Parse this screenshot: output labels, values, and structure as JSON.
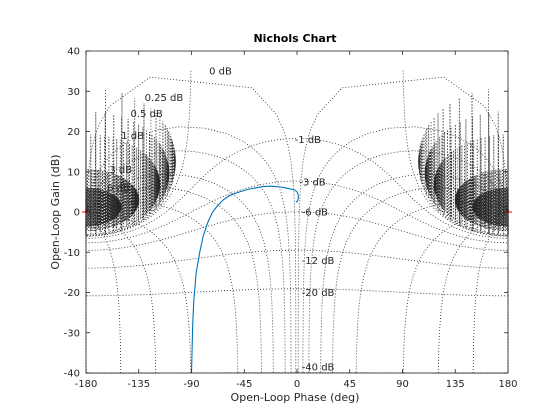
{
  "chart_data": {
    "type": "line",
    "title": "Nichols Chart",
    "xlabel": "Open-Loop Phase (deg)",
    "ylabel": "Open-Loop Gain (dB)",
    "xlim": [
      -180,
      180
    ],
    "ylim": [
      -40,
      40
    ],
    "xticks": [
      -180,
      -135,
      -90,
      -45,
      0,
      45,
      90,
      135,
      180
    ],
    "yticks": [
      -40,
      -30,
      -20,
      -10,
      0,
      10,
      20,
      30,
      40
    ],
    "xtick_labels": [
      "-180",
      "-135",
      "-90",
      "-45",
      "0",
      "45",
      "90",
      "135",
      "180"
    ],
    "ytick_labels": [
      "-40",
      "-30",
      "-20",
      "-10",
      "0",
      "10",
      "20",
      "30",
      "40"
    ],
    "grid": true,
    "grid_style": "dotted",
    "grid_color": "#262626",
    "line_color": "#0072bd",
    "critical_marker_color": "#ff0000",
    "critical_points": [
      [
        -180,
        0
      ],
      [
        180,
        0
      ]
    ],
    "closed_loop_gain_contours_db": [
      0,
      0.25,
      0.5,
      1,
      3,
      6,
      -1,
      -3,
      -6,
      -12,
      -20,
      -40
    ],
    "grid_labels": [
      {
        "text": "0 dB",
        "phase": -75,
        "gain": 35
      },
      {
        "text": "0.25 dB",
        "phase": -130,
        "gain": 28.5
      },
      {
        "text": "0.5 dB",
        "phase": -142,
        "gain": 24.5
      },
      {
        "text": "1 dB",
        "phase": -150,
        "gain": 19
      },
      {
        "text": "3 dB",
        "phase": -160,
        "gain": 10.5
      },
      {
        "text": "6 dB",
        "phase": -162,
        "gain": 6
      },
      {
        "text": "-1 dB",
        "phase": -2,
        "gain": 18
      },
      {
        "text": "-3 dB",
        "phase": 2,
        "gain": 7.5
      },
      {
        "text": "-6 dB",
        "phase": 4,
        "gain": 0
      },
      {
        "text": "-12 dB",
        "phase": 4,
        "gain": -12
      },
      {
        "text": "-20 dB",
        "phase": 4,
        "gain": -20
      },
      {
        "text": "-40 dB",
        "phase": 4,
        "gain": -38.5
      }
    ],
    "series": [
      {
        "x": [
          -90,
          -89.5,
          -89,
          -88,
          -86,
          -83,
          -80,
          -76,
          -72,
          -68,
          -63,
          -58,
          -53,
          -47,
          -41,
          -35,
          -29,
          -23,
          -18,
          -14,
          -10,
          -7,
          -5,
          -3,
          -1.5,
          0,
          1,
          1.2,
          0.6,
          -0.2,
          -0.8
        ],
        "y": [
          -40,
          -34,
          -28,
          -22,
          -15,
          -10,
          -6,
          -2.5,
          0,
          1.5,
          3,
          4,
          4.6,
          5.2,
          5.7,
          6,
          6.3,
          6.4,
          6.3,
          6.2,
          6,
          5.8,
          5.7,
          5.6,
          5.4,
          5,
          4.3,
          3.5,
          2.9,
          2.5,
          2.6
        ]
      }
    ]
  }
}
